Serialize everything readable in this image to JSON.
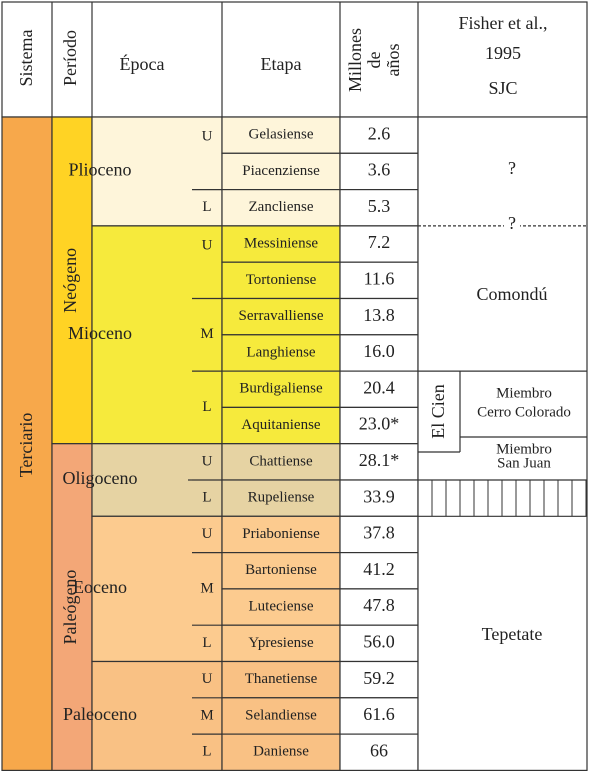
{
  "header": {
    "sistema": "Sistema",
    "periodo": "Período",
    "epoca": "Época",
    "etapa": "Etapa",
    "millones": [
      "Millones",
      "de",
      "años"
    ],
    "fisher": [
      "Fisher et al.,",
      "1995",
      "SJC"
    ]
  },
  "sistema": "Terciario",
  "periodos": [
    "Neógeno",
    "Paleógeno"
  ],
  "epocas": [
    {
      "name": "Plioceno",
      "subdivisions": [
        "U",
        "L"
      ]
    },
    {
      "name": "Mioceno",
      "subdivisions": [
        "U",
        "M",
        "L"
      ]
    },
    {
      "name": "Oligoceno",
      "subdivisions": [
        "U",
        "L"
      ]
    },
    {
      "name": "Eoceno",
      "subdivisions": [
        "U",
        "M",
        "L"
      ]
    },
    {
      "name": "Paleoceno",
      "subdivisions": [
        "U",
        "M",
        "L"
      ]
    }
  ],
  "etapas": [
    {
      "name": "Gelasiense",
      "age": "2.6"
    },
    {
      "name": "Piacenziense",
      "age": "3.6"
    },
    {
      "name": "Zancliense",
      "age": "5.3"
    },
    {
      "name": "Messiniense",
      "age": "7.2"
    },
    {
      "name": "Tortoniense",
      "age": "11.6"
    },
    {
      "name": "Serravalliense",
      "age": "13.8"
    },
    {
      "name": "Langhiense",
      "age": "16.0"
    },
    {
      "name": "Burdigaliense",
      "age": "20.4"
    },
    {
      "name": "Aquitaniense",
      "age": "23.0*"
    },
    {
      "name": "Chattiense",
      "age": "28.1*"
    },
    {
      "name": "Rupeliense",
      "age": "33.9"
    },
    {
      "name": "Priaboniense",
      "age": "37.8"
    },
    {
      "name": "Bartoniense",
      "age": "41.2"
    },
    {
      "name": "Luteciense",
      "age": "47.8"
    },
    {
      "name": "Ypresiense",
      "age": "56.0"
    },
    {
      "name": "Thanetiense",
      "age": "59.2"
    },
    {
      "name": "Selandiense",
      "age": "61.6"
    },
    {
      "name": "Daniense",
      "age": "66"
    }
  ],
  "fisher": {
    "upper": "?",
    "boundary": "?",
    "comondu": "Comondú",
    "el_cien": "El Cien",
    "cerro_colorado": [
      "Miembro",
      "Cerro Colorado"
    ],
    "san_juan": [
      "Miembro",
      "San Juan"
    ],
    "tepetate": "Tepetate"
  }
}
